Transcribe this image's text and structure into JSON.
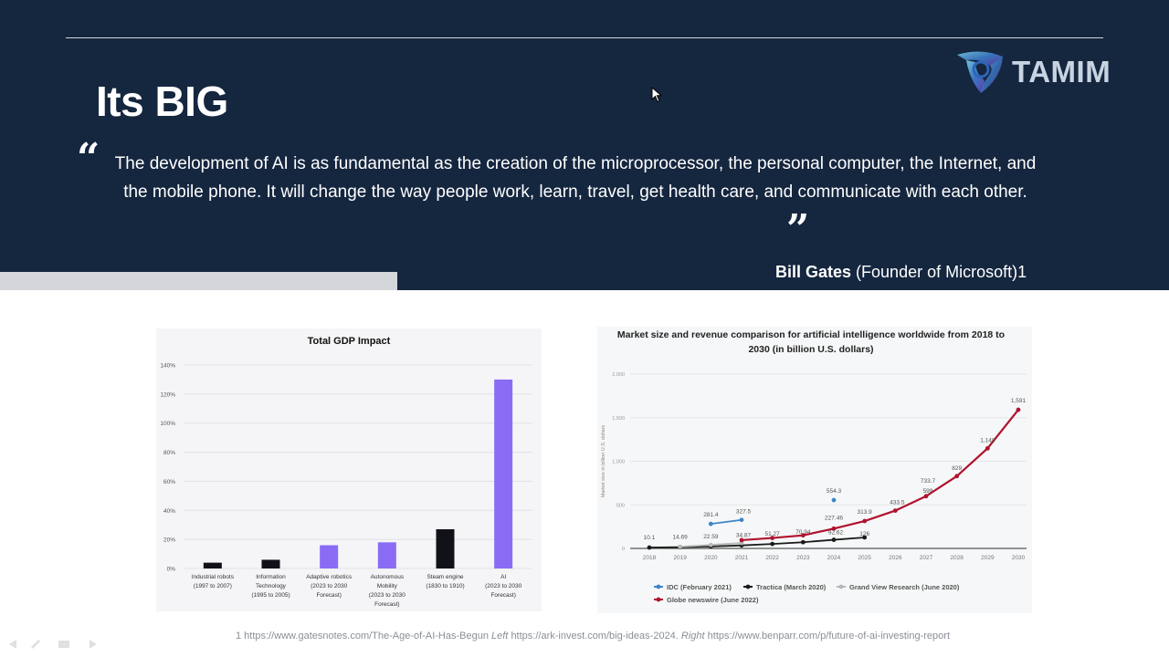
{
  "slide": {
    "title": "Its BIG",
    "quote": "The development of AI is as fundamental as the creation of the microprocessor, the personal computer, the Internet, and the mobile phone. It will change the way people work, learn, travel, get health care, and communicate with each other.",
    "quote_open_mark": "“",
    "quote_close_mark": "”",
    "author": "Bill Gates",
    "author_role": "(Founder of Microsoft)1",
    "logo_text": "TAMIM",
    "logo_icon": "tamim-logo-icon"
  },
  "footnote": {
    "source1": "1 https://www.gatesnotes.com/The-Age-of-AI-Has-Begun",
    "left_label": "Left",
    "source2": "https://ark-invest.com/big-ideas-2024.",
    "right_label": "Right",
    "source3": "https://www.benparr.com/p/future-of-ai-investing-report"
  },
  "colors": {
    "header_bg": "#15263f",
    "purple": "#8a6cf4",
    "black_bar": "#111118",
    "idc": "#3f86c8",
    "tractica": "#1a1a1a",
    "grand_view": "#b8b8b8",
    "globe": "#b0132e"
  },
  "chart_data": [
    {
      "type": "bar",
      "title": "Total GDP Impact",
      "categories": [
        [
          "Industrial robots",
          "(1997 to 2007)"
        ],
        [
          "Information",
          "Technology",
          "(1995 to 2005)"
        ],
        [
          "Adaptive robotics",
          "(2023 to 2030",
          "Forecast)"
        ],
        [
          "Autonomous",
          "Mobility",
          "(2023 to 2030",
          "Forecast)"
        ],
        [
          "Steam engine",
          "(1830 to 1910)"
        ],
        [
          "AI",
          "(2023 to 2030",
          "Forecast)"
        ]
      ],
      "values": [
        4,
        6,
        16,
        18,
        27,
        130
      ],
      "bar_colors": [
        "black",
        "black",
        "purple",
        "purple",
        "black",
        "purple"
      ],
      "y_ticks": [
        "0%",
        "20%",
        "40%",
        "60%",
        "80%",
        "100%",
        "120%",
        "140%"
      ],
      "ylim": [
        0,
        140
      ],
      "grid": true
    },
    {
      "type": "line",
      "title": "Market size and revenue comparison for artificial intelligence worldwide from 2018 to 2030 (in billion U.S. dollars)",
      "ylabel": "Market size in billion U.S. dollars",
      "x": [
        "2018",
        "2019",
        "2020",
        "2021",
        "2022",
        "2023",
        "2024",
        "2025",
        "2026",
        "2027",
        "2028",
        "2029",
        "2030"
      ],
      "y_ticks": [
        "0",
        "500",
        "1,000",
        "1,500",
        "2,000"
      ],
      "ylim": [
        0,
        2000
      ],
      "legend_position": "bottom",
      "series": [
        {
          "name": "IDC (February 2021)",
          "x": [
            "2020",
            "2021",
            "2024"
          ],
          "values": [
            281.4,
            327.5,
            554.3
          ],
          "line_segments": [
            [
              0,
              1
            ]
          ]
        },
        {
          "name": "Tractica (March 2020)",
          "x": [
            "2018",
            "2019",
            "2020",
            "2021",
            "2022",
            "2023",
            "2024",
            "2025"
          ],
          "values": [
            10.1,
            14.69,
            22.59,
            34.87,
            51.27,
            70.94,
            99,
            126
          ]
        },
        {
          "name": "Grand View Research (June 2020)",
          "x": [
            "2019",
            "2020",
            "2021"
          ],
          "values": [
            20,
            40,
            62
          ]
        },
        {
          "name": "Globe newswire (June 2022)",
          "x": [
            "2021",
            "2022",
            "2023",
            "2024",
            "2025",
            "2026",
            "2027",
            "2028",
            "2029",
            "2030"
          ],
          "values": [
            95,
            120,
            150,
            227.46,
            313.9,
            433.5,
            599,
            829,
            1148,
            1591
          ]
        }
      ],
      "annotations": [
        "10.1",
        "14.69",
        "22.59",
        "281.4",
        "327.5",
        "34.87",
        "51.27",
        "70.94",
        "554.3",
        "227.46",
        "92.62",
        "313.9",
        "126",
        "433.5",
        "733.7",
        "599",
        "829",
        "1,148",
        "1,591"
      ]
    }
  ]
}
